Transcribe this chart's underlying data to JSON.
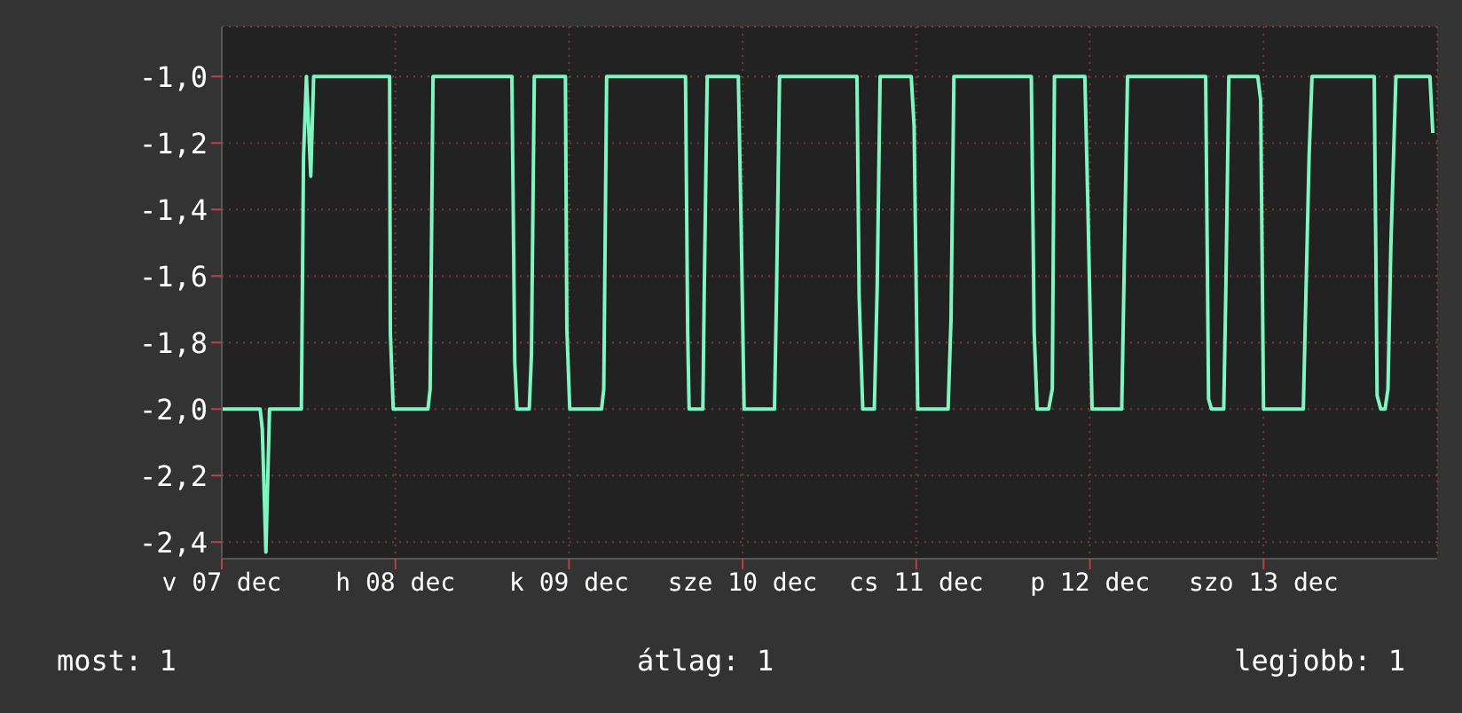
{
  "chart_data": {
    "type": "line",
    "x": [
      "--12-07T00:00",
      "--12-07T05:18",
      "--12-07T05:36",
      "--12-07T06:06",
      "--12-07T06:36",
      "--12-07T11:00",
      "--12-07T11:18",
      "--12-07T11:42",
      "--12-07T12:18",
      "--12-07T12:42",
      "--12-07T23:12",
      "--12-07T23:18",
      "--12-07T23:42",
      "--12-08T04:30",
      "--12-08T04:48",
      "--12-08T05:12",
      "--12-08T16:06",
      "--12-08T16:30",
      "--12-08T16:48",
      "--12-08T18:30",
      "--12-08T18:48",
      "--12-08T19:12",
      "--12-08T23:30",
      "--12-08T23:42",
      "--12-09T00:06",
      "--12-09T04:30",
      "--12-09T04:48",
      "--12-09T05:12",
      "--12-09T16:06",
      "--12-09T16:24",
      "--12-09T16:36",
      "--12-09T18:30",
      "--12-09T18:42",
      "--12-09T19:06",
      "--12-09T23:24",
      "--12-09T23:48",
      "--12-10T00:12",
      "--12-10T04:24",
      "--12-10T04:42",
      "--12-10T05:06",
      "--12-10T15:48",
      "--12-10T16:06",
      "--12-10T16:36",
      "--12-10T18:12",
      "--12-10T18:36",
      "--12-10T19:00",
      "--12-10T23:18",
      "--12-10T23:42",
      "--12-11T00:12",
      "--12-11T04:24",
      "--12-11T04:48",
      "--12-11T05:12",
      "--12-11T15:54",
      "--12-11T16:18",
      "--12-11T16:42",
      "--12-11T18:18",
      "--12-11T18:48",
      "--12-11T19:06",
      "--12-11T23:18",
      "--12-11T23:42",
      "--12-12T00:18",
      "--12-12T04:24",
      "--12-12T04:42",
      "--12-12T05:12",
      "--12-12T16:00",
      "--12-12T16:24",
      "--12-12T16:48",
      "--12-12T18:30",
      "--12-12T18:48",
      "--12-12T19:12",
      "--12-12T23:12",
      "--12-12T23:36",
      "--12-13T00:00",
      "--12-13T05:30",
      "--12-13T05:48",
      "--12-13T06:18",
      "--12-13T06:42",
      "--12-13T15:18",
      "--12-13T15:42",
      "--12-13T16:12",
      "--12-13T16:48",
      "--12-13T17:12",
      "--12-13T17:36",
      "--12-13T18:18",
      "--12-13T23:00",
      "--12-13T23:24"
    ],
    "series": [
      {
        "color": "#7ff5c0",
        "values": [
          -2.0,
          -2.0,
          -2.06,
          -2.43,
          -2.0,
          -2.0,
          -1.24,
          -1.0,
          -1.3,
          -1.0,
          -1.0,
          -1.77,
          -2.0,
          -2.0,
          -1.94,
          -1.0,
          -1.0,
          -1.86,
          -2.0,
          -2.0,
          -1.84,
          -1.0,
          -1.0,
          -1.76,
          -2.0,
          -2.0,
          -1.94,
          -1.0,
          -1.0,
          -1.77,
          -2.0,
          -2.0,
          -1.63,
          -1.0,
          -1.0,
          -1.46,
          -2.0,
          -2.0,
          -1.63,
          -1.0,
          -1.0,
          -1.66,
          -2.0,
          -2.0,
          -1.63,
          -1.0,
          -1.0,
          -1.15,
          -2.0,
          -2.0,
          -1.73,
          -1.0,
          -1.0,
          -1.77,
          -2.0,
          -2.0,
          -1.94,
          -1.0,
          -1.0,
          -1.37,
          -2.0,
          -2.0,
          -1.63,
          -1.0,
          -1.0,
          -1.97,
          -2.0,
          -2.0,
          -1.63,
          -1.0,
          -1.0,
          -1.07,
          -2.0,
          -2.0,
          -1.71,
          -1.24,
          -1.0,
          -1.0,
          -1.96,
          -2.0,
          -2.0,
          -1.94,
          -1.51,
          -1.0,
          -1.0,
          -1.17
        ]
      }
    ],
    "xlim": [
      "--12-07",
      "--12-14"
    ],
    "xticks": [
      {
        "value": "--12-07",
        "label": "v 07 dec"
      },
      {
        "value": "--12-08",
        "label": "h 08 dec"
      },
      {
        "value": "--12-09",
        "label": "k 09 dec"
      },
      {
        "value": "--12-10",
        "label": "sze 10 dec"
      },
      {
        "value": "--12-11",
        "label": "cs 11 dec"
      },
      {
        "value": "--12-12",
        "label": "p 12 dec"
      },
      {
        "value": "--12-13",
        "label": "szo 13 dec"
      }
    ],
    "ylim": [
      -2.45,
      -0.85
    ],
    "yticks": [
      {
        "value": -2.4,
        "label": "-2,4"
      },
      {
        "value": -2.2,
        "label": "-2,2"
      },
      {
        "value": -2.0,
        "label": "-2,0"
      },
      {
        "value": -1.8,
        "label": "-1,8"
      },
      {
        "value": -1.6,
        "label": "-1,6"
      },
      {
        "value": -1.4,
        "label": "-1,4"
      },
      {
        "value": -1.2,
        "label": "-1,2"
      },
      {
        "value": -1.0,
        "label": "-1,0"
      }
    ],
    "grid": true,
    "annotations": [
      "most: 1",
      "átlag: 1",
      "legjobb: 1"
    ]
  }
}
